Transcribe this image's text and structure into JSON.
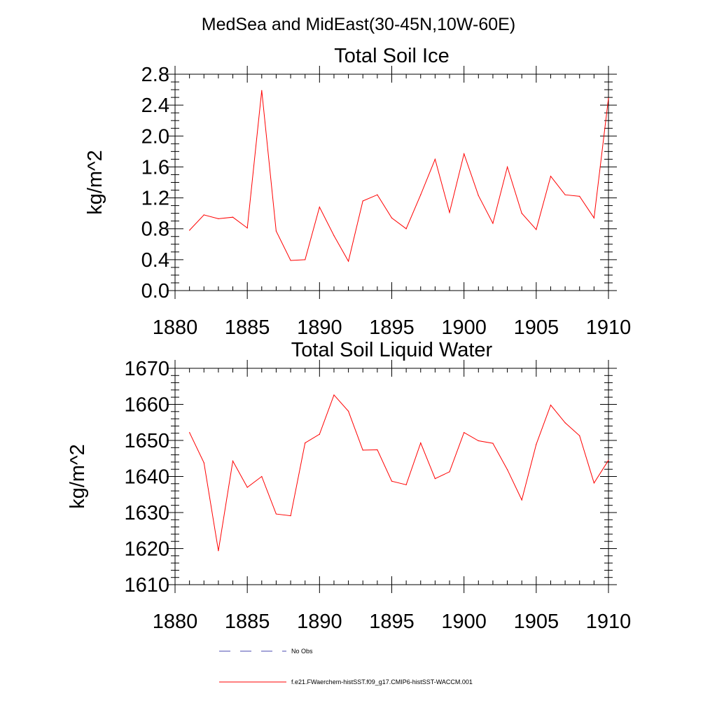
{
  "figure": {
    "suptitle": "MedSea and MidEast(30-45N,10W-60E)"
  },
  "legend": {
    "entries": [
      {
        "label": "No Obs",
        "color": "#4a4ab0",
        "style": "dashed"
      },
      {
        "label": "f.e21.FWaerchem-histSST.f09_g17.CMIP6-histSST-WACCM.001",
        "color": "#ff0000",
        "style": "solid"
      }
    ]
  },
  "chart_data": [
    {
      "type": "line",
      "title": "Total Soil Ice",
      "xlabel": "",
      "ylabel": "kg/m^2",
      "xlim": [
        1880,
        1910
      ],
      "ylim": [
        0.0,
        2.8
      ],
      "xticks": [
        "1880",
        "1885",
        "1890",
        "1895",
        "1900",
        "1905",
        "1910"
      ],
      "yticks": [
        "0.0",
        "0.4",
        "0.8",
        "1.2",
        "1.6",
        "2.0",
        "2.4",
        "2.8"
      ],
      "grid": false,
      "x": [
        1881,
        1882,
        1883,
        1884,
        1885,
        1886,
        1887,
        1888,
        1889,
        1890,
        1891,
        1892,
        1893,
        1894,
        1895,
        1896,
        1897,
        1898,
        1899,
        1900,
        1901,
        1902,
        1903,
        1904,
        1905,
        1906,
        1907,
        1908,
        1909,
        1910
      ],
      "series": [
        {
          "color": "#ff0000",
          "values": [
            0.78,
            0.98,
            0.93,
            0.95,
            0.81,
            2.59,
            0.77,
            0.39,
            0.4,
            1.08,
            0.71,
            0.38,
            1.16,
            1.24,
            0.94,
            0.8,
            1.24,
            1.7,
            1.01,
            1.77,
            1.23,
            0.87,
            1.6,
            1.0,
            0.79,
            1.48,
            1.24,
            1.22,
            0.94,
            2.49
          ]
        }
      ]
    },
    {
      "type": "line",
      "title": "Total Soil Liquid Water",
      "xlabel": "",
      "ylabel": "kg/m^2",
      "xlim": [
        1880,
        1910
      ],
      "ylim": [
        1610,
        1670
      ],
      "xticks": [
        "1880",
        "1885",
        "1890",
        "1895",
        "1900",
        "1905",
        "1910"
      ],
      "yticks": [
        "1610",
        "1620",
        "1630",
        "1640",
        "1650",
        "1660",
        "1670"
      ],
      "grid": false,
      "x": [
        1881,
        1882,
        1883,
        1884,
        1885,
        1886,
        1887,
        1888,
        1889,
        1890,
        1891,
        1892,
        1893,
        1894,
        1895,
        1896,
        1897,
        1898,
        1899,
        1900,
        1901,
        1902,
        1903,
        1904,
        1905,
        1906,
        1907,
        1908,
        1909,
        1910
      ],
      "series": [
        {
          "color": "#ff0000",
          "values": [
            1652.2,
            1643.8,
            1619.4,
            1644.3,
            1637.0,
            1640.0,
            1629.6,
            1629.1,
            1649.3,
            1651.7,
            1662.6,
            1658.1,
            1647.3,
            1647.4,
            1638.7,
            1637.7,
            1649.3,
            1639.4,
            1641.3,
            1652.2,
            1649.9,
            1649.2,
            1641.9,
            1633.5,
            1648.9,
            1659.8,
            1654.9,
            1651.3,
            1638.2,
            1644.5
          ]
        }
      ]
    }
  ]
}
